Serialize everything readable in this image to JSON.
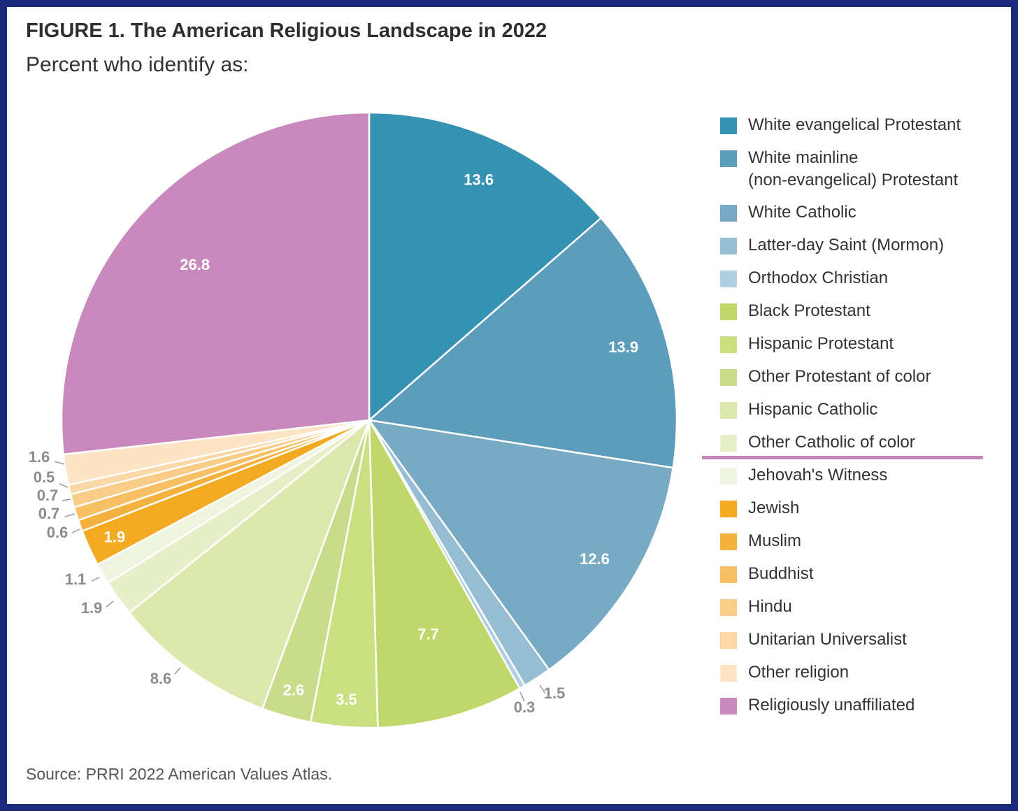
{
  "title": "FIGURE 1.  The American Religious Landscape in 2022",
  "subtitle": "Percent who identify as:",
  "source": "Source: PRRI 2022 American Values Atlas.",
  "divider_color": "#c487bc",
  "chart_data": {
    "type": "pie",
    "start_angle": "12 o'clock",
    "direction": "clockwise",
    "legend_position": "right",
    "slices": [
      {
        "label": "White evangelical Protestant",
        "value": 13.6,
        "color": "#3592b2",
        "label_text": "13.6",
        "label_style": "inside"
      },
      {
        "label": "White mainline\n(non-evangelical) Protestant",
        "value": 13.9,
        "color": "#5b9dba",
        "label_text": "13.9",
        "label_style": "inside"
      },
      {
        "label": "White Catholic",
        "value": 12.6,
        "color": "#78aac3",
        "label_text": "12.6",
        "label_style": "inside"
      },
      {
        "label": "Latter-day Saint (Mormon)",
        "value": 1.5,
        "color": "#97bdd2",
        "label_text": "1.5",
        "label_style": "outside"
      },
      {
        "label": "Orthodox Christian",
        "value": 0.3,
        "color": "#b0cfe0",
        "label_text": "0.3",
        "label_style": "outside"
      },
      {
        "label": "Black Protestant",
        "value": 7.7,
        "color": "#c0d86b",
        "label_text": "7.7",
        "label_style": "inside"
      },
      {
        "label": "Hispanic Protestant",
        "value": 3.5,
        "color": "#cadf7f",
        "label_text": "3.5",
        "label_style": "inside"
      },
      {
        "label": "Other Protestant of color",
        "value": 2.6,
        "color": "#c8dc8c",
        "label_text": "2.6",
        "label_style": "inside"
      },
      {
        "label": "Hispanic Catholic",
        "value": 8.6,
        "color": "#dde8ae",
        "label_text": "8.6",
        "label_style": "outside"
      },
      {
        "label": "Other Catholic of color",
        "value": 1.9,
        "color": "#e6efc8",
        "label_text": "1.9",
        "label_style": "outside"
      },
      {
        "label": "Jehovah's Witness",
        "value": 1.1,
        "color": "#eef4e0",
        "label_text": "1.1",
        "label_style": "outside"
      },
      {
        "label": "Jewish",
        "value": 1.9,
        "color": "#f2aa22",
        "label_text": "1.9",
        "label_style": "inside"
      },
      {
        "label": "Muslim",
        "value": 0.6,
        "color": "#f5b13e",
        "label_text": "0.6",
        "label_style": "outside"
      },
      {
        "label": "Buddhist",
        "value": 0.7,
        "color": "#f7c065",
        "label_text": "0.7",
        "label_style": "outside"
      },
      {
        "label": "Hindu",
        "value": 0.7,
        "color": "#f9cd88",
        "label_text": "0.7",
        "label_style": "outside"
      },
      {
        "label": "Unitarian Universalist",
        "value": 0.5,
        "color": "#fbd9a6",
        "label_text": "0.5",
        "label_style": "outside"
      },
      {
        "label": "Other religion",
        "value": 1.6,
        "color": "#fde4c4",
        "label_text": "1.6",
        "label_style": "outside"
      },
      {
        "label": "Religiously unaffiliated",
        "value": 26.8,
        "color": "#c889bc",
        "label_text": "26.8",
        "label_style": "inside"
      }
    ]
  }
}
